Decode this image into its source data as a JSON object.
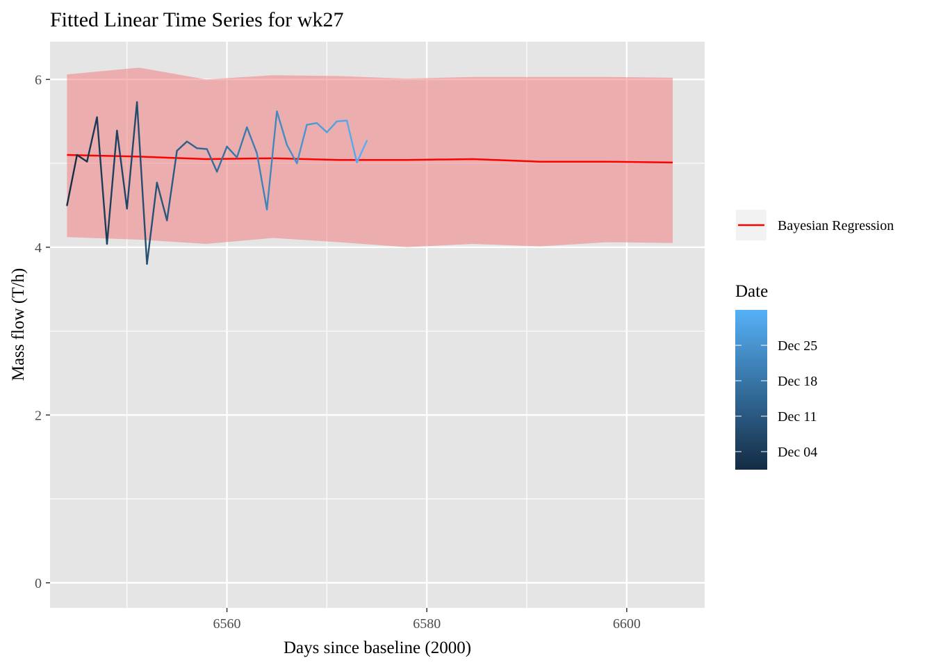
{
  "chart_data": {
    "type": "line",
    "title": "Fitted Linear Time Series for wk27",
    "xlabel": "Days since baseline (2000)",
    "ylabel": "Mass flow (T/h)",
    "xlim": [
      6542.3,
      6607.8
    ],
    "ylim": [
      -0.3,
      6.45
    ],
    "x_ticks": [
      6560,
      6580,
      6600
    ],
    "y_ticks": [
      0,
      2,
      4,
      6
    ],
    "grid": true,
    "observed": {
      "x": [
        6544,
        6545,
        6546,
        6547,
        6548,
        6549,
        6550,
        6551,
        6552,
        6553,
        6554,
        6555,
        6556,
        6557,
        6558,
        6559,
        6560,
        6561,
        6562,
        6563,
        6564,
        6565,
        6566,
        6567,
        6568,
        6569,
        6570,
        6571,
        6572,
        6573,
        6574
      ],
      "y": [
        4.5,
        5.1,
        5.02,
        5.55,
        4.04,
        5.39,
        4.46,
        5.73,
        3.8,
        4.77,
        4.32,
        5.15,
        5.26,
        5.18,
        5.17,
        4.9,
        5.2,
        5.07,
        5.43,
        5.12,
        4.45,
        5.62,
        5.22,
        5.0,
        5.46,
        5.48,
        5.37,
        5.5,
        5.51,
        5.01,
        5.27
      ],
      "color_start": "#132B43",
      "color_end": "#56B1F7"
    },
    "series": [
      {
        "name": "Bayesian Regression",
        "color": "#FF0000",
        "x": [
          6544,
          6551.2,
          6557.9,
          6564.6,
          6571.3,
          6578,
          6584.6,
          6591.3,
          6598,
          6604.6
        ],
        "y": [
          5.1,
          5.08,
          5.05,
          5.06,
          5.04,
          5.04,
          5.05,
          5.02,
          5.02,
          5.01
        ],
        "lower": [
          4.12,
          4.09,
          4.04,
          4.11,
          4.06,
          4.0,
          4.04,
          4.01,
          4.06,
          4.05
        ],
        "upper": [
          6.06,
          6.14,
          6.0,
          6.05,
          6.04,
          6.01,
          6.03,
          6.03,
          6.03,
          6.02
        ],
        "band_color": "#F08080"
      }
    ],
    "color_legend": {
      "title": "Date",
      "labels": [
        "Dec 25",
        "Dec 18",
        "Dec 11",
        "Dec 04"
      ]
    },
    "legend_position": "right"
  }
}
